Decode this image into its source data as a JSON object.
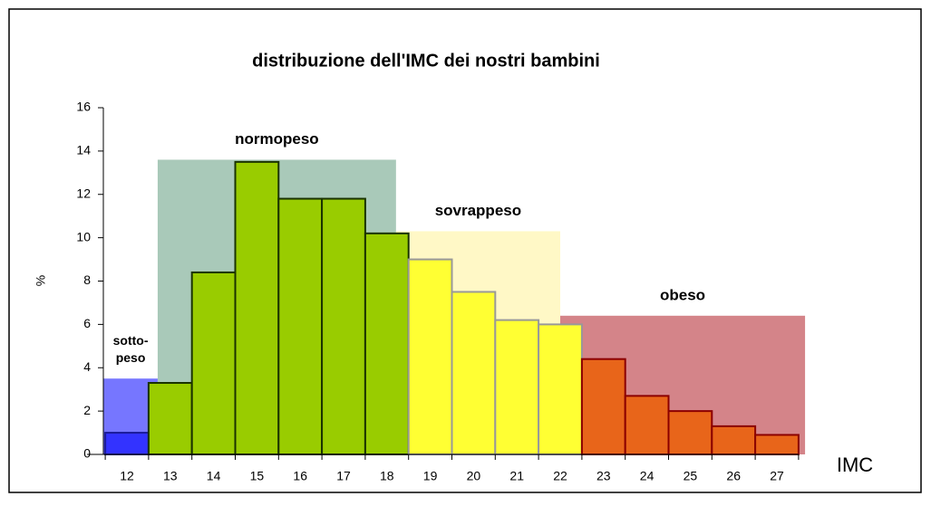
{
  "chart_data": {
    "type": "bar",
    "title": "distribuzione dell'IMC dei nostri bambini",
    "ylabel": "%",
    "xlabel": "IMC",
    "categories": [
      "12",
      "13",
      "14",
      "15",
      "16",
      "17",
      "18",
      "19",
      "20",
      "21",
      "22",
      "23",
      "24",
      "25",
      "26",
      "27"
    ],
    "values": [
      1.0,
      3.3,
      8.4,
      13.5,
      11.8,
      11.8,
      10.2,
      9.0,
      7.5,
      6.2,
      6.0,
      4.4,
      2.7,
      2.0,
      1.3,
      0.9
    ],
    "colors": [
      "#3333ff",
      "#99cc00",
      "#99cc00",
      "#99cc00",
      "#99cc00",
      "#99cc00",
      "#99cc00",
      "#ffff33",
      "#ffff33",
      "#ffff33",
      "#ffff33",
      "#e8651a",
      "#e8651a",
      "#e8651a",
      "#e8651a",
      "#e8651a"
    ],
    "edge_colors": [
      "#1a1a99",
      "#1a3300",
      "#1a3300",
      "#1a3300",
      "#1a3300",
      "#1a3300",
      "#1a3300",
      "#999999",
      "#999999",
      "#999999",
      "#999999",
      "#8b0000",
      "#8b0000",
      "#8b0000",
      "#8b0000",
      "#8b0000"
    ],
    "ylim": [
      0,
      16
    ],
    "yticks": [
      0,
      2,
      4,
      6,
      8,
      10,
      12,
      14,
      16
    ],
    "zones": [
      {
        "label": [
          "sotto-",
          "peso"
        ],
        "from": 11.46,
        "to": 12.71,
        "height": 3.5,
        "color": "#1a1aff"
      },
      {
        "label": [
          "normopeso"
        ],
        "from": 12.71,
        "to": 18.21,
        "height": 13.6,
        "color": "#6fa58a"
      },
      {
        "label": [
          "sovrappeso"
        ],
        "from": 18.21,
        "to": 22.0,
        "height": 10.3,
        "color": "#fff3a0"
      },
      {
        "label": [
          "obeso"
        ],
        "from": 22.0,
        "to": 27.65,
        "height": 6.4,
        "color": "#b8323a"
      }
    ]
  }
}
